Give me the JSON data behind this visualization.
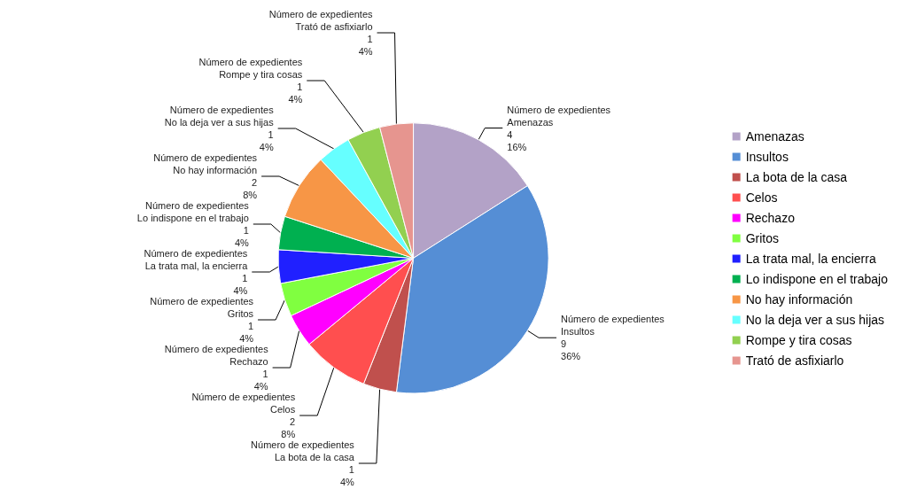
{
  "chart_data": {
    "type": "pie",
    "series": [
      {
        "name": "Número de expedientes",
        "values": [
          4,
          9,
          1,
          2,
          1,
          1,
          1,
          1,
          2,
          1,
          1,
          1
        ]
      }
    ],
    "categories": [
      "Amenazas",
      "Insultos",
      "La bota de la casa",
      "Celos",
      "Rechazo",
      "Gritos",
      "La trata mal, la encierra",
      "Lo indispone en el trabajo",
      "No hay información",
      "No la deja ver a sus hijas",
      "Rompe y tira cosas",
      "Trató de asfixiarlo"
    ],
    "colors": [
      "#b3a2c7",
      "#558ed5",
      "#c0504d",
      "#ff4f4f",
      "#ff00ff",
      "#80ff40",
      "#2020ff",
      "#00b050",
      "#f79646",
      "#66ffff",
      "#92d050",
      "#e6958f"
    ],
    "value_labels": [
      "16%",
      "36%",
      "4%",
      "8%",
      "4%",
      "4%",
      "4%",
      "4%",
      "8%",
      "4%",
      "4%",
      "4%"
    ],
    "data_labels": true,
    "legend": "right"
  }
}
